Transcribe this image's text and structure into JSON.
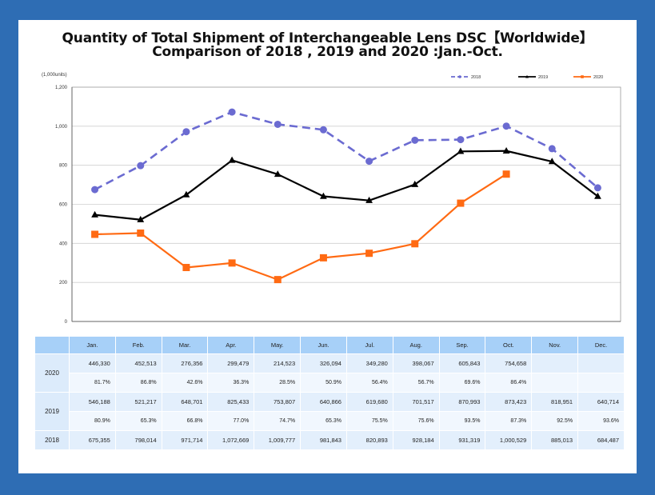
{
  "frame": {
    "border_color": "#2E6DB4",
    "panel_color": "#FFFFFF"
  },
  "chart_data": {
    "type": "line",
    "title": "Quantity of Total Shipment of Interchangeable Lens DSC【Worldwide】",
    "subtitle": "Comparison of 2018 , 2019 and 2020 :Jan.-Oct.",
    "ylabel": "(1,000units)",
    "xlabel": "",
    "ylim": [
      0,
      1200
    ],
    "yticks": [
      0,
      200,
      400,
      600,
      800,
      1000,
      1200
    ],
    "ytick_labels": [
      "0",
      "200",
      "400",
      "600",
      "800",
      "1,000",
      "1,200"
    ],
    "grid": true,
    "legend_position": "top-right",
    "categories": [
      "Jan.",
      "Feb.",
      "Mar.",
      "Apr.",
      "May.",
      "Jun.",
      "Jul.",
      "Aug.",
      "Sep.",
      "Oct.",
      "Nov.",
      "Dec."
    ],
    "series": [
      {
        "name": "2018",
        "color": "#6B6BD1",
        "style": "dashed",
        "marker": "circle",
        "values": [
          675.355,
          798.014,
          971.714,
          1072.669,
          1009.777,
          981.843,
          820.893,
          928.184,
          931.319,
          1000.529,
          885.013,
          684.487
        ]
      },
      {
        "name": "2019",
        "color": "#000000",
        "style": "solid",
        "marker": "triangle",
        "values": [
          546.188,
          521.217,
          648.701,
          825.433,
          753.807,
          640.866,
          619.68,
          701.517,
          870.993,
          873.423,
          818.951,
          640.714
        ]
      },
      {
        "name": "2020",
        "color": "#FF6A13",
        "style": "solid",
        "marker": "square",
        "values": [
          446.33,
          452.513,
          276.356,
          299.479,
          214.523,
          326.094,
          349.28,
          398.067,
          605.843,
          754.658,
          null,
          null
        ]
      }
    ]
  },
  "table": {
    "header": [
      "",
      "Jan.",
      "Feb.",
      "Mar.",
      "Apr.",
      "May.",
      "Jun.",
      "Jul.",
      "Aug.",
      "Sep.",
      "Oct.",
      "Nov.",
      "Dec."
    ],
    "rows": [
      {
        "year": "2020",
        "values": [
          "446,330",
          "452,513",
          "276,356",
          "299,479",
          "214,523",
          "326,094",
          "349,280",
          "398,067",
          "605,843",
          "754,658",
          "",
          ""
        ],
        "percents": [
          "81.7%",
          "86.8%",
          "42.6%",
          "36.3%",
          "28.5%",
          "50.9%",
          "56.4%",
          "56.7%",
          "69.6%",
          "86.4%",
          "",
          ""
        ]
      },
      {
        "year": "2019",
        "values": [
          "546,188",
          "521,217",
          "648,701",
          "825,433",
          "753,807",
          "640,866",
          "619,680",
          "701,517",
          "870,993",
          "873,423",
          "818,951",
          "640,714"
        ],
        "percents": [
          "80.9%",
          "65.3%",
          "66.8%",
          "77.0%",
          "74.7%",
          "65.3%",
          "75.5%",
          "75.6%",
          "93.5%",
          "87.3%",
          "92.5%",
          "93.6%"
        ]
      },
      {
        "year": "2018",
        "values": [
          "675,355",
          "798,014",
          "971,714",
          "1,072,669",
          "1,009,777",
          "981,843",
          "820,893",
          "928,184",
          "931,319",
          "1,000,529",
          "885,013",
          "684,487"
        ]
      }
    ]
  }
}
